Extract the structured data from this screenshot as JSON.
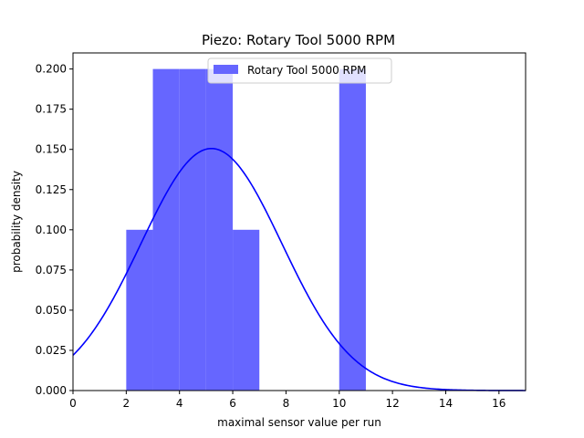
{
  "chart_data": {
    "type": "bar",
    "title": "Piezo: Rotary Tool 5000 RPM",
    "xlabel": "maximal sensor value per run",
    "ylabel": "probability density",
    "xlim": [
      0,
      17
    ],
    "ylim": [
      0,
      0.21
    ],
    "x_ticks": [
      "0",
      "2",
      "4",
      "6",
      "8",
      "10",
      "12",
      "14",
      "16"
    ],
    "y_ticks": [
      "0.000",
      "0.025",
      "0.050",
      "0.075",
      "0.100",
      "0.125",
      "0.150",
      "0.175",
      "0.200"
    ],
    "grid": false,
    "legend_position": "top-center",
    "series": [
      {
        "name": "Rotary Tool 5000 RPM",
        "kind": "histogram",
        "color": "#6666ff",
        "bins": [
          {
            "x0": 2,
            "x1": 3,
            "density": 0.1
          },
          {
            "x0": 3,
            "x1": 4,
            "density": 0.2
          },
          {
            "x0": 4,
            "x1": 5,
            "density": 0.2
          },
          {
            "x0": 5,
            "x1": 6,
            "density": 0.2
          },
          {
            "x0": 6,
            "x1": 7,
            "density": 0.1
          },
          {
            "x0": 10,
            "x1": 11,
            "density": 0.2
          }
        ]
      },
      {
        "kind": "normal-fit-curve",
        "color": "#0000ff",
        "mean": 5.2,
        "std": 2.65
      }
    ]
  }
}
